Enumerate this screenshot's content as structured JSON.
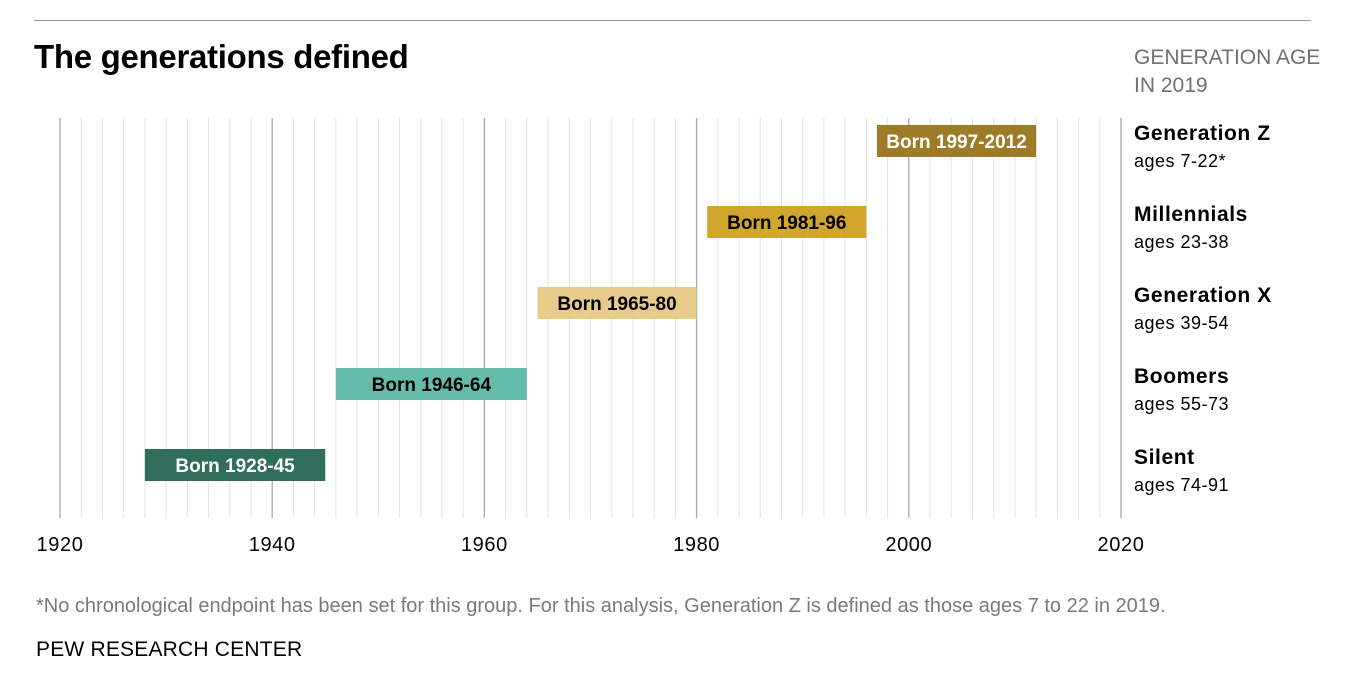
{
  "header": {
    "title": "The generations defined",
    "age_header_line1": "GENERATION AGE",
    "age_header_line2": "IN 2019"
  },
  "footer": {
    "footnote": "*No chronological endpoint has been set for this group. For this analysis, Generation Z is defined as those ages 7 to 22 in 2019.",
    "source": "PEW RESEARCH CENTER"
  },
  "colors": {
    "silent": "#2e6e5a",
    "boomers": "#66bcac",
    "gen_x": "#e6cb8a",
    "millennials": "#d2a52c",
    "gen_z": "#9e7c27"
  },
  "chart_data": {
    "type": "bar",
    "subtype": "horizontal-range",
    "title": "The generations defined",
    "xlim": [
      1920,
      2020
    ],
    "x_ticks": [
      1920,
      1940,
      1960,
      1980,
      2000,
      2020
    ],
    "grid": true,
    "series": [
      {
        "name": "Generation Z",
        "ages": "ages 7-22*",
        "start": 1997,
        "end": 2012,
        "label": "Born 1997-2012",
        "color": "#9e7c27",
        "text_color": "#ffffff"
      },
      {
        "name": "Millennials",
        "ages": "ages 23-38",
        "start": 1981,
        "end": 1996,
        "label": "Born 1981-96",
        "color": "#d2a52c",
        "text_color": "#000000"
      },
      {
        "name": "Generation X",
        "ages": "ages 39-54",
        "start": 1965,
        "end": 1980,
        "label": "Born 1965-80",
        "color": "#e6cb8a",
        "text_color": "#000000"
      },
      {
        "name": "Boomers",
        "ages": "ages 55-73",
        "start": 1946,
        "end": 1964,
        "label": "Born 1946-64",
        "color": "#66bcac",
        "text_color": "#000000"
      },
      {
        "name": "Silent",
        "ages": "ages 74-91",
        "start": 1928,
        "end": 1945,
        "label": "Born 1928-45",
        "color": "#2e6e5a",
        "text_color": "#ffffff"
      }
    ]
  }
}
